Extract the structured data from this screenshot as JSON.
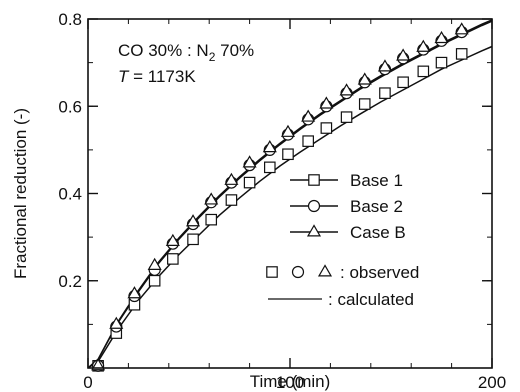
{
  "chart_data": {
    "type": "line",
    "xlabel": "Time (min)",
    "ylabel": "Fractional reduction (-)",
    "xlim": [
      0,
      200
    ],
    "ylim": [
      0,
      0.8
    ],
    "xticks": [
      0,
      100,
      200
    ],
    "yticks": [
      0.2,
      0.4,
      0.6,
      0.8
    ],
    "x_minor_step": 20,
    "y_minor_step": 0.1,
    "grid": false,
    "legend_position": "right",
    "annotations": {
      "line1_pre": "CO 30% : N",
      "line1_sub": "2",
      "line1_post": " 70%",
      "line2_var": "T",
      "line2_rest": " = 1173K"
    },
    "legend": {
      "observed_label": ": observed",
      "calculated_label": ": calculated"
    },
    "series": [
      {
        "name": "Base 1",
        "marker": "square",
        "observed_x": [
          5,
          14,
          23,
          33,
          42,
          52,
          61,
          71,
          80,
          90,
          99,
          109,
          118,
          128,
          137,
          147,
          156,
          166,
          175,
          185
        ],
        "observed_y": [
          0.005,
          0.08,
          0.145,
          0.2,
          0.25,
          0.295,
          0.34,
          0.385,
          0.425,
          0.46,
          0.49,
          0.52,
          0.55,
          0.575,
          0.605,
          0.63,
          0.655,
          0.68,
          0.7,
          0.72
        ],
        "calc_x": [
          0,
          5,
          15,
          25,
          35,
          45,
          55,
          65,
          75,
          85,
          95,
          105,
          115,
          125,
          135,
          145,
          155,
          165,
          175,
          185,
          195,
          200
        ],
        "calc_y": [
          0.0,
          0.015,
          0.09,
          0.155,
          0.21,
          0.26,
          0.305,
          0.35,
          0.39,
          0.428,
          0.463,
          0.495,
          0.525,
          0.555,
          0.583,
          0.61,
          0.635,
          0.66,
          0.685,
          0.706,
          0.727,
          0.737
        ]
      },
      {
        "name": "Base 2",
        "marker": "circle",
        "observed_x": [
          5,
          14,
          23,
          33,
          42,
          52,
          61,
          71,
          80,
          90,
          99,
          109,
          118,
          128,
          137,
          147,
          156,
          166,
          175,
          185
        ],
        "observed_y": [
          0.005,
          0.095,
          0.165,
          0.225,
          0.285,
          0.33,
          0.38,
          0.425,
          0.465,
          0.5,
          0.535,
          0.57,
          0.6,
          0.63,
          0.655,
          0.685,
          0.71,
          0.73,
          0.75,
          0.77
        ],
        "calc_x": [
          0,
          5,
          15,
          25,
          35,
          45,
          55,
          65,
          75,
          85,
          95,
          105,
          115,
          125,
          135,
          145,
          155,
          165,
          175,
          185,
          195,
          200
        ],
        "calc_y": [
          0.0,
          0.02,
          0.105,
          0.175,
          0.24,
          0.295,
          0.345,
          0.392,
          0.435,
          0.475,
          0.512,
          0.547,
          0.58,
          0.61,
          0.64,
          0.667,
          0.693,
          0.717,
          0.741,
          0.763,
          0.785,
          0.795
        ]
      },
      {
        "name": "Case B",
        "marker": "triangle",
        "observed_x": [
          5,
          14,
          23,
          33,
          42,
          52,
          61,
          71,
          80,
          90,
          99,
          109,
          118,
          128,
          137,
          147,
          156,
          166,
          175,
          185
        ],
        "observed_y": [
          0.005,
          0.1,
          0.17,
          0.235,
          0.29,
          0.335,
          0.385,
          0.43,
          0.47,
          0.505,
          0.54,
          0.575,
          0.605,
          0.635,
          0.66,
          0.69,
          0.715,
          0.735,
          0.755,
          0.775
        ],
        "calc_x": [
          0,
          5,
          15,
          25,
          35,
          45,
          55,
          65,
          75,
          85,
          95,
          105,
          115,
          125,
          135,
          145,
          155,
          165,
          175,
          185,
          195,
          200
        ],
        "calc_y": [
          0.0,
          0.02,
          0.107,
          0.178,
          0.243,
          0.298,
          0.348,
          0.395,
          0.438,
          0.478,
          0.515,
          0.55,
          0.583,
          0.613,
          0.643,
          0.67,
          0.696,
          0.72,
          0.744,
          0.766,
          0.788,
          0.798
        ]
      }
    ]
  }
}
